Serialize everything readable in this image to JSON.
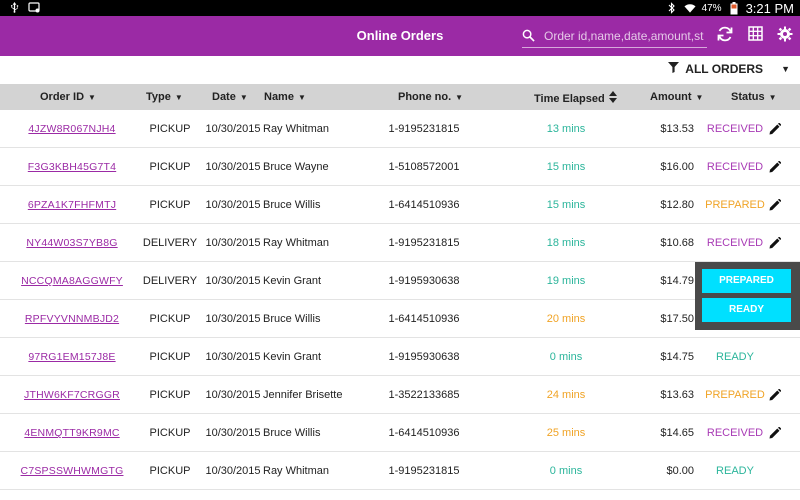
{
  "statusbar": {
    "battery": "47%",
    "time": "3:21 PM"
  },
  "appbar": {
    "title": "Online Orders",
    "search_placeholder": "Order id,name,date,amount,st..."
  },
  "filter": {
    "label": "ALL ORDERS"
  },
  "columns": {
    "order_id": "Order ID",
    "type": "Type",
    "date": "Date",
    "name": "Name",
    "phone": "Phone no.",
    "elapsed": "Time Elapsed",
    "amount": "Amount",
    "status": "Status"
  },
  "colors": {
    "primary": "#9b2aa5",
    "elapsed_green": "#2bb59b",
    "elapsed_orange": "#f0a325",
    "status_received": "#a83ab5",
    "status_prepared": "#f0a325",
    "status_ready": "#2bb59b",
    "popup_button": "#00e0ff"
  },
  "rows": [
    {
      "id": "4JZW8R067NJH4",
      "type": "PICKUP",
      "date": "10/30/2015",
      "name": "Ray Whitman",
      "phone": "1-9195231815",
      "elapsed": "13 mins",
      "elapsed_tone": "green",
      "amount": "$13.53",
      "status": "RECEIVED",
      "editable": true
    },
    {
      "id": "F3G3KBH45G7T4",
      "type": "PICKUP",
      "date": "10/30/2015",
      "name": "Bruce Wayne",
      "phone": "1-5108572001",
      "elapsed": "15 mins",
      "elapsed_tone": "green",
      "amount": "$16.00",
      "status": "RECEIVED",
      "editable": true
    },
    {
      "id": "6PZA1K7FHFMTJ",
      "type": "PICKUP",
      "date": "10/30/2015",
      "name": "Bruce Willis",
      "phone": "1-6414510936",
      "elapsed": "15 mins",
      "elapsed_tone": "green",
      "amount": "$12.80",
      "status": "PREPARED",
      "editable": true
    },
    {
      "id": "NY44W03S7YB8G",
      "type": "DELIVERY",
      "date": "10/30/2015",
      "name": "Ray Whitman",
      "phone": "1-9195231815",
      "elapsed": "18 mins",
      "elapsed_tone": "green",
      "amount": "$10.68",
      "status": "RECEIVED",
      "editable": true
    },
    {
      "id": "NCCQMA8AGGWFY",
      "type": "DELIVERY",
      "date": "10/30/2015",
      "name": "Kevin Grant",
      "phone": "1-9195930638",
      "elapsed": "19 mins",
      "elapsed_tone": "green",
      "amount": "$14.79",
      "status": "",
      "editable": false
    },
    {
      "id": "RPFVYVNNMBJD2",
      "type": "PICKUP",
      "date": "10/30/2015",
      "name": "Bruce Willis",
      "phone": "1-6414510936",
      "elapsed": "20 mins",
      "elapsed_tone": "orange",
      "amount": "$17.50",
      "status": "",
      "editable": false
    },
    {
      "id": "97RG1EM157J8E",
      "type": "PICKUP",
      "date": "10/30/2015",
      "name": "Kevin Grant",
      "phone": "1-9195930638",
      "elapsed": "0 mins",
      "elapsed_tone": "green",
      "amount": "$14.75",
      "status": "READY",
      "editable": false
    },
    {
      "id": "JTHW6KF7CRGGR",
      "type": "PICKUP",
      "date": "10/30/2015",
      "name": "Jennifer Brisette",
      "phone": "1-3522133685",
      "elapsed": "24 mins",
      "elapsed_tone": "orange",
      "amount": "$13.63",
      "status": "PREPARED",
      "editable": true
    },
    {
      "id": "4ENMQTT9KR9MC",
      "type": "PICKUP",
      "date": "10/30/2015",
      "name": "Bruce Willis",
      "phone": "1-6414510936",
      "elapsed": "25 mins",
      "elapsed_tone": "orange",
      "amount": "$14.65",
      "status": "RECEIVED",
      "editable": true
    },
    {
      "id": "C7SPSSWHWMGTG",
      "type": "PICKUP",
      "date": "10/30/2015",
      "name": "Ray Whitman",
      "phone": "1-9195231815",
      "elapsed": "0 mins",
      "elapsed_tone": "green",
      "amount": "$0.00",
      "status": "READY",
      "editable": false
    }
  ],
  "popup": {
    "prepared_label": "PREPARED",
    "ready_label": "READY"
  }
}
